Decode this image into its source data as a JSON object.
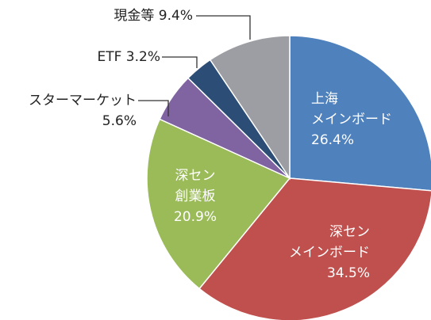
{
  "chart_data": {
    "type": "pie",
    "categories": [
      "上海\nメインボード",
      "深セン\nメインボード",
      "深セン\n創業板",
      "スターマーケット",
      "ETF",
      "現金等"
    ],
    "values": [
      26.4,
      34.5,
      20.9,
      5.6,
      3.2,
      9.4
    ],
    "value_labels": [
      "26.4%",
      "34.5%",
      "20.9%",
      "5.6%",
      "3.2%",
      "9.4%"
    ],
    "colors": [
      "#4f81bd",
      "#c0504d",
      "#9bbb59",
      "#8064a2",
      "#2c4d75",
      "#9d9ea3"
    ]
  }
}
